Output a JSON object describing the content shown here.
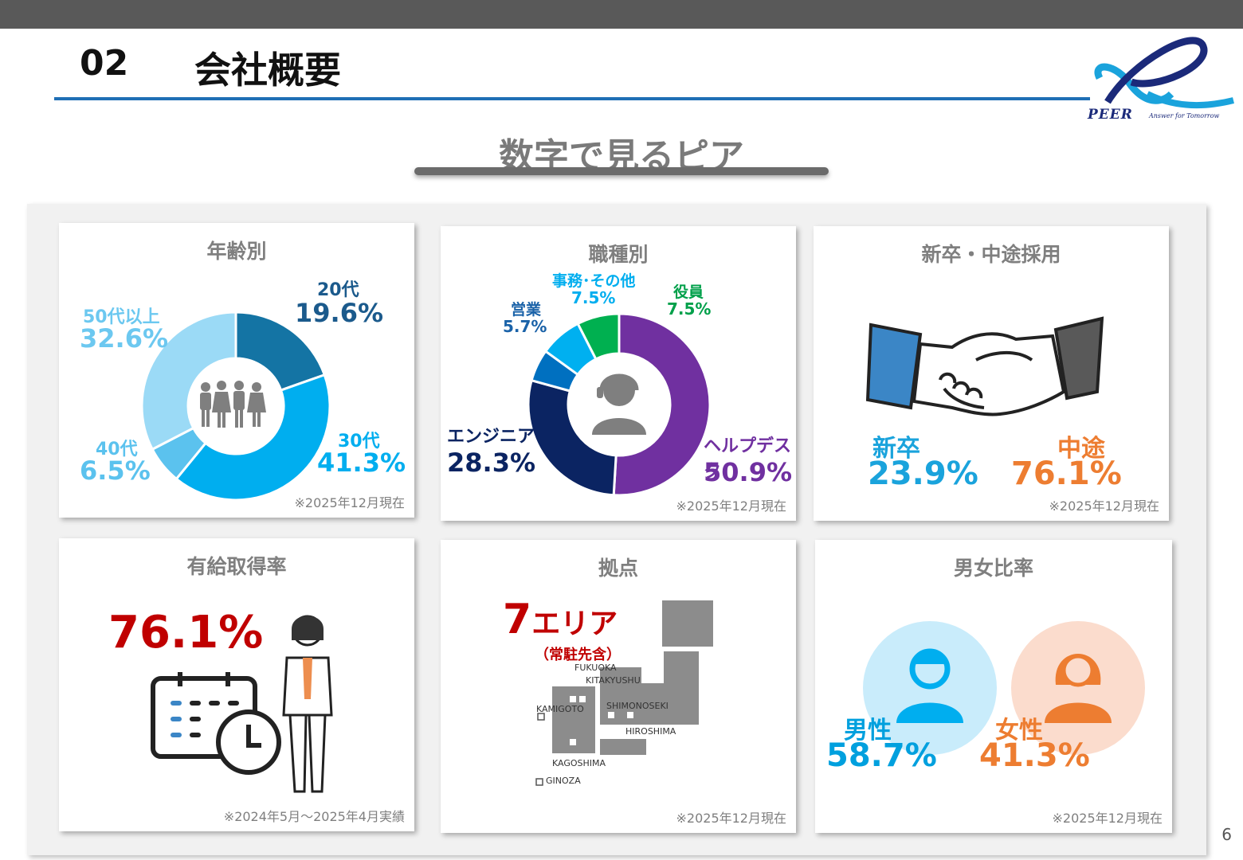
{
  "header": {
    "section_number": "02",
    "section_title": "会社概要",
    "logo_text": "PEER",
    "logo_tagline": "Answer for Tomorrow"
  },
  "subtitle": "数字で見るピア",
  "page_number": "6",
  "cards": {
    "age": {
      "title": "年齢別",
      "note": "※2025年12月現在",
      "labels": [
        {
          "name": "20代",
          "pct": "19.6%"
        },
        {
          "name": "30代",
          "pct": "41.3%"
        },
        {
          "name": "40代",
          "pct": "6.5%"
        },
        {
          "name": "50代以上",
          "pct": "32.6%"
        }
      ]
    },
    "job": {
      "title": "職種別",
      "note": "※2025年12月現在",
      "labels": [
        {
          "name": "ヘルプデスク",
          "pct": "50.9%"
        },
        {
          "name": "エンジニア",
          "pct": "28.3%"
        },
        {
          "name": "営業",
          "pct": "5.7%"
        },
        {
          "name": "事務･その他",
          "pct": "7.5%"
        },
        {
          "name": "役員",
          "pct": "7.5%"
        }
      ]
    },
    "hire": {
      "title": "新卒・中途採用",
      "note": "※2025年12月現在",
      "new_label": "新卒",
      "new_pct": "23.9%",
      "mid_label": "中途",
      "mid_pct": "76.1%"
    },
    "leave": {
      "title": "有給取得率",
      "value": "76.1%",
      "note": "※2024年5月～2025年4月実績"
    },
    "sites": {
      "title": "拠点",
      "count": "7",
      "unit": "エリア",
      "sub": "（常駐先含）",
      "places": [
        "FUKUOKA",
        "KITAKYUSHU",
        "KAMIGOTO",
        "SHIMONOSEKI",
        "HIROSHIMA",
        "KAGOSHIMA",
        "GINOZA"
      ],
      "note": "※2025年12月現在"
    },
    "gender": {
      "title": "男女比率",
      "male_label": "男性",
      "male_pct": "58.7%",
      "female_label": "女性",
      "female_pct": "41.3%",
      "note": "※2025年12月現在"
    }
  },
  "chart_data": [
    {
      "type": "pie",
      "title": "年齢別",
      "categories": [
        "20代",
        "30代",
        "40代",
        "50代以上"
      ],
      "values": [
        19.6,
        41.3,
        6.5,
        32.6
      ],
      "colors": [
        "#1474a4",
        "#00aeef",
        "#5bc2ee",
        "#9bdaf6"
      ]
    },
    {
      "type": "pie",
      "title": "職種別",
      "categories": [
        "ヘルプデスク",
        "エンジニア",
        "営業",
        "事務･その他",
        "役員"
      ],
      "values": [
        50.9,
        28.3,
        5.7,
        7.5,
        7.5
      ],
      "colors": [
        "#7030a0",
        "#0b2462",
        "#0070c0",
        "#00b0f0",
        "#00b050"
      ]
    }
  ],
  "colors": {
    "accent_blue": "#1f6fb5",
    "red": "#c00000",
    "orange": "#ed7d31",
    "light_blue": "#1aa3dc"
  }
}
